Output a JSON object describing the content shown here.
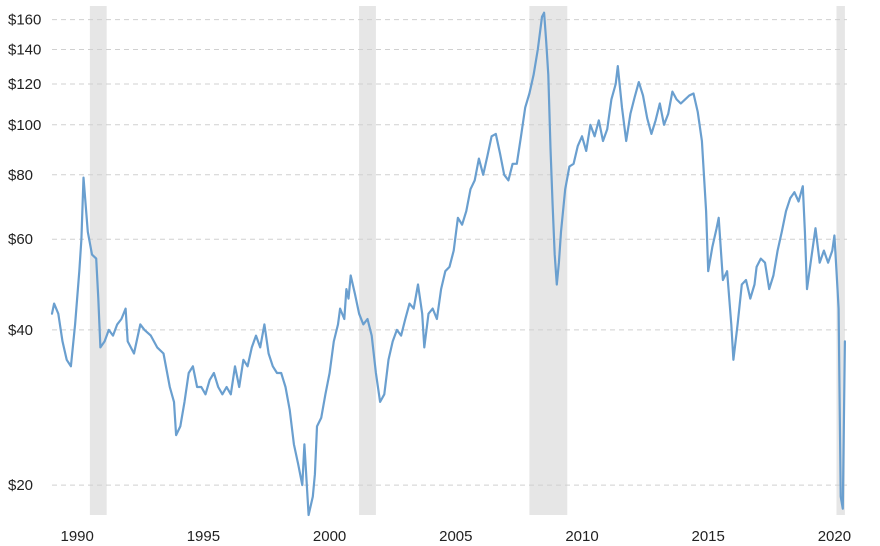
{
  "chart_data": {
    "type": "line",
    "title": "",
    "xlabel": "",
    "ylabel": "",
    "y_scale": "log",
    "ylim": [
      17.5,
      170
    ],
    "xlim": [
      "1989-01",
      "2020-06"
    ],
    "grid": "horizontal-dashed",
    "legend": "none",
    "colors": {
      "line": "#6a9fcf",
      "recession": "#e6e6e6",
      "grid": "#d0d0d0"
    },
    "y_ticks": [
      {
        "value": 20,
        "label": "$20"
      },
      {
        "value": 40,
        "label": "$40"
      },
      {
        "value": 60,
        "label": "$60"
      },
      {
        "value": 80,
        "label": "$80"
      },
      {
        "value": 100,
        "label": "$100"
      },
      {
        "value": 120,
        "label": "$120"
      },
      {
        "value": 140,
        "label": "$140"
      },
      {
        "value": 160,
        "label": "$160"
      }
    ],
    "x_ticks": [
      {
        "value": 1990,
        "label": "1990"
      },
      {
        "value": 1995,
        "label": "1995"
      },
      {
        "value": 2000,
        "label": "2000"
      },
      {
        "value": 2005,
        "label": "2005"
      },
      {
        "value": 2010,
        "label": "2010"
      },
      {
        "value": 2015,
        "label": "2015"
      },
      {
        "value": 2020,
        "label": "2020"
      }
    ],
    "recessions": [
      {
        "start": "1990-07",
        "end": "1991-03"
      },
      {
        "start": "2001-03",
        "end": "2001-11"
      },
      {
        "start": "2007-12",
        "end": "2009-06"
      },
      {
        "start": "2020-02",
        "end": "2020-06"
      }
    ],
    "series": [
      {
        "points": [
          [
            "1989-01",
            43
          ],
          [
            "1989-02",
            45
          ],
          [
            "1989-04",
            43
          ],
          [
            "1989-06",
            38
          ],
          [
            "1989-08",
            35
          ],
          [
            "1989-10",
            34
          ],
          [
            "1989-12",
            41
          ],
          [
            "1990-02",
            52
          ],
          [
            "1990-03",
            60
          ],
          [
            "1990-04",
            79
          ],
          [
            "1990-06",
            62
          ],
          [
            "1990-08",
            56
          ],
          [
            "1990-10",
            55
          ],
          [
            "1990-11",
            46
          ],
          [
            "1990-12",
            37
          ],
          [
            "1991-02",
            38
          ],
          [
            "1991-04",
            40
          ],
          [
            "1991-06",
            39
          ],
          [
            "1991-08",
            41
          ],
          [
            "1991-10",
            42
          ],
          [
            "1991-12",
            44
          ],
          [
            "1992-01",
            38
          ],
          [
            "1992-04",
            36
          ],
          [
            "1992-07",
            41
          ],
          [
            "1992-09",
            40
          ],
          [
            "1992-12",
            39
          ],
          [
            "1993-03",
            37
          ],
          [
            "1993-06",
            36
          ],
          [
            "1993-09",
            31
          ],
          [
            "1993-11",
            29
          ],
          [
            "1993-12",
            25
          ],
          [
            "1994-02",
            26
          ],
          [
            "1994-04",
            29
          ],
          [
            "1994-06",
            33
          ],
          [
            "1994-08",
            34
          ],
          [
            "1994-10",
            31
          ],
          [
            "1994-12",
            31
          ],
          [
            "1995-02",
            30
          ],
          [
            "1995-04",
            32
          ],
          [
            "1995-06",
            33
          ],
          [
            "1995-08",
            31
          ],
          [
            "1995-10",
            30
          ],
          [
            "1995-12",
            31
          ],
          [
            "1996-02",
            30
          ],
          [
            "1996-04",
            34
          ],
          [
            "1996-06",
            31
          ],
          [
            "1996-08",
            35
          ],
          [
            "1996-10",
            34
          ],
          [
            "1996-12",
            37
          ],
          [
            "1997-02",
            39
          ],
          [
            "1997-04",
            37
          ],
          [
            "1997-06",
            41
          ],
          [
            "1997-08",
            36
          ],
          [
            "1997-10",
            34
          ],
          [
            "1997-12",
            33
          ],
          [
            "1998-02",
            33
          ],
          [
            "1998-04",
            31
          ],
          [
            "1998-06",
            28
          ],
          [
            "1998-08",
            24
          ],
          [
            "1998-10",
            22
          ],
          [
            "1998-12",
            20
          ],
          [
            "1999-01",
            24
          ],
          [
            "1999-03",
            17.5
          ],
          [
            "1999-05",
            19
          ],
          [
            "1999-06",
            21
          ],
          [
            "1999-07",
            26
          ],
          [
            "1999-09",
            27
          ],
          [
            "1999-11",
            30
          ],
          [
            "2000-01",
            33
          ],
          [
            "2000-03",
            38
          ],
          [
            "2000-05",
            41
          ],
          [
            "2000-06",
            44
          ],
          [
            "2000-08",
            42
          ],
          [
            "2000-09",
            48
          ],
          [
            "2000-10",
            46
          ],
          [
            "2000-11",
            51
          ],
          [
            "2001-01",
            47
          ],
          [
            "2001-03",
            43
          ],
          [
            "2001-05",
            41
          ],
          [
            "2001-07",
            42
          ],
          [
            "2001-09",
            39
          ],
          [
            "2001-11",
            33
          ],
          [
            "2002-01",
            29
          ],
          [
            "2002-03",
            30
          ],
          [
            "2002-05",
            35
          ],
          [
            "2002-07",
            38
          ],
          [
            "2002-09",
            40
          ],
          [
            "2002-11",
            39
          ],
          [
            "2003-01",
            42
          ],
          [
            "2003-03",
            45
          ],
          [
            "2003-05",
            44
          ],
          [
            "2003-07",
            49
          ],
          [
            "2003-09",
            43
          ],
          [
            "2003-10",
            37
          ],
          [
            "2003-12",
            43
          ],
          [
            "2004-02",
            44
          ],
          [
            "2004-04",
            42
          ],
          [
            "2004-06",
            48
          ],
          [
            "2004-08",
            52
          ],
          [
            "2004-10",
            53
          ],
          [
            "2004-12",
            57
          ],
          [
            "2005-02",
            66
          ],
          [
            "2005-04",
            64
          ],
          [
            "2005-06",
            68
          ],
          [
            "2005-08",
            75
          ],
          [
            "2005-10",
            78
          ],
          [
            "2005-12",
            86
          ],
          [
            "2006-02",
            80
          ],
          [
            "2006-04",
            87
          ],
          [
            "2006-06",
            95
          ],
          [
            "2006-08",
            96
          ],
          [
            "2006-10",
            88
          ],
          [
            "2006-12",
            80
          ],
          [
            "2007-02",
            78
          ],
          [
            "2007-04",
            84
          ],
          [
            "2007-06",
            84
          ],
          [
            "2007-08",
            95
          ],
          [
            "2007-10",
            108
          ],
          [
            "2007-12",
            115
          ],
          [
            "2008-02",
            125
          ],
          [
            "2008-04",
            140
          ],
          [
            "2008-06",
            162
          ],
          [
            "2008-07",
            165
          ],
          [
            "2008-08",
            145
          ],
          [
            "2008-09",
            125
          ],
          [
            "2008-10",
            90
          ],
          [
            "2008-11",
            70
          ],
          [
            "2008-12",
            56
          ],
          [
            "2009-01",
            49
          ],
          [
            "2009-02",
            54
          ],
          [
            "2009-03",
            62
          ],
          [
            "2009-05",
            75
          ],
          [
            "2009-07",
            83
          ],
          [
            "2009-09",
            84
          ],
          [
            "2009-11",
            91
          ],
          [
            "2010-01",
            95
          ],
          [
            "2010-03",
            89
          ],
          [
            "2010-05",
            100
          ],
          [
            "2010-07",
            95
          ],
          [
            "2010-09",
            102
          ],
          [
            "2010-11",
            93
          ],
          [
            "2011-01",
            98
          ],
          [
            "2011-03",
            112
          ],
          [
            "2011-05",
            120
          ],
          [
            "2011-06",
            130
          ],
          [
            "2011-08",
            108
          ],
          [
            "2011-10",
            93
          ],
          [
            "2011-12",
            105
          ],
          [
            "2012-02",
            113
          ],
          [
            "2012-04",
            121
          ],
          [
            "2012-06",
            114
          ],
          [
            "2012-08",
            103
          ],
          [
            "2012-10",
            96
          ],
          [
            "2012-12",
            102
          ],
          [
            "2013-02",
            110
          ],
          [
            "2013-04",
            100
          ],
          [
            "2013-06",
            105
          ],
          [
            "2013-08",
            116
          ],
          [
            "2013-10",
            112
          ],
          [
            "2013-12",
            110
          ],
          [
            "2014-02",
            112
          ],
          [
            "2014-04",
            114
          ],
          [
            "2014-06",
            115
          ],
          [
            "2014-08",
            106
          ],
          [
            "2014-10",
            93
          ],
          [
            "2014-12",
            68
          ],
          [
            "2015-01",
            52
          ],
          [
            "2015-03",
            58
          ],
          [
            "2015-05",
            63
          ],
          [
            "2015-06",
            66
          ],
          [
            "2015-08",
            50
          ],
          [
            "2015-10",
            52
          ],
          [
            "2015-12",
            41
          ],
          [
            "2016-01",
            35
          ],
          [
            "2016-03",
            41
          ],
          [
            "2016-05",
            49
          ],
          [
            "2016-07",
            50
          ],
          [
            "2016-09",
            46
          ],
          [
            "2016-11",
            49
          ],
          [
            "2016-12",
            53
          ],
          [
            "2017-02",
            55
          ],
          [
            "2017-04",
            54
          ],
          [
            "2017-06",
            48
          ],
          [
            "2017-08",
            51
          ],
          [
            "2017-10",
            57
          ],
          [
            "2017-12",
            62
          ],
          [
            "2018-02",
            68
          ],
          [
            "2018-04",
            72
          ],
          [
            "2018-06",
            74
          ],
          [
            "2018-08",
            71
          ],
          [
            "2018-10",
            76
          ],
          [
            "2018-11",
            62
          ],
          [
            "2018-12",
            48
          ],
          [
            "2019-02",
            55
          ],
          [
            "2019-04",
            63
          ],
          [
            "2019-06",
            54
          ],
          [
            "2019-08",
            57
          ],
          [
            "2019-10",
            54
          ],
          [
            "2019-12",
            57
          ],
          [
            "2020-01",
            61
          ],
          [
            "2020-02",
            52
          ],
          [
            "2020-03",
            44
          ],
          [
            "2020-04",
            19
          ],
          [
            "2020-05",
            18
          ],
          [
            "2020-06",
            38
          ]
        ]
      }
    ]
  }
}
